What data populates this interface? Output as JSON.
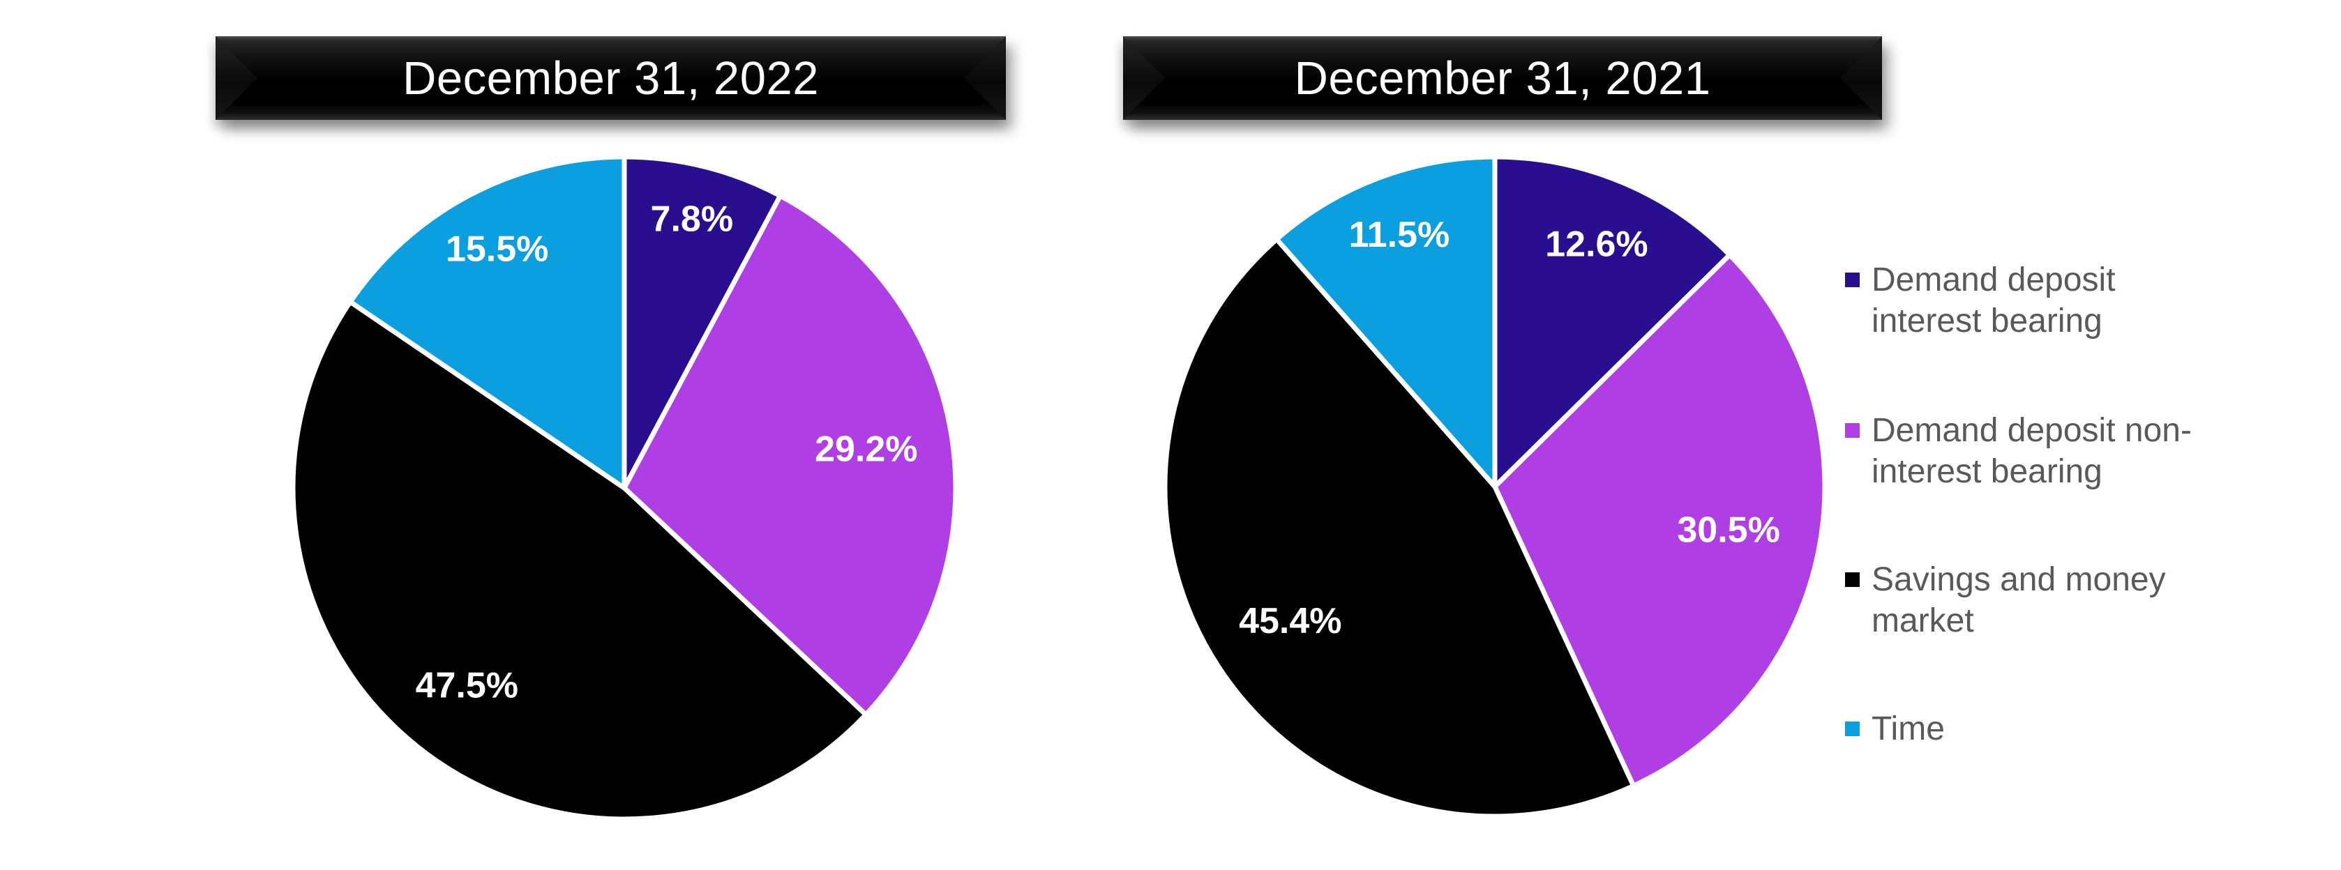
{
  "background_color": "#ffffff",
  "chart_data": [
    {
      "type": "pie",
      "title": "December 31, 2022",
      "categories": [
        "Demand deposit interest bearing",
        "Demand deposit non-interest bearing",
        "Savings and money market",
        "Time"
      ],
      "values": [
        7.8,
        29.2,
        47.5,
        15.5
      ],
      "value_labels": [
        "7.8%",
        "29.2%",
        "47.5%",
        "15.5%"
      ],
      "colors": [
        "#290E8F",
        "#AF3FE4",
        "#000000",
        "#0C9FE0"
      ],
      "slice_border_color": "#ffffff",
      "label_color": "#ffffff",
      "start_angle": 0,
      "direction": "clockwise",
      "label_radius": [
        0.84,
        0.74,
        0.76,
        0.82
      ]
    },
    {
      "type": "pie",
      "title": "December 31, 2021",
      "categories": [
        "Demand deposit interest bearing",
        "Demand deposit non-interest bearing",
        "Savings and money market",
        "Time"
      ],
      "values": [
        12.6,
        30.5,
        45.4,
        11.5
      ],
      "value_labels": [
        "12.6%",
        "30.5%",
        "45.4%",
        "11.5%"
      ],
      "colors": [
        "#290E8F",
        "#AF3FE4",
        "#000000",
        "#0C9FE0"
      ],
      "slice_border_color": "#ffffff",
      "label_color": "#ffffff",
      "start_angle": 0,
      "direction": "clockwise",
      "label_radius": [
        0.8,
        0.72,
        0.74,
        0.82
      ]
    }
  ],
  "legend": {
    "position": "right",
    "text_color": "#595959",
    "items": [
      {
        "label": "Demand deposit interest bearing",
        "color": "#290E8F"
      },
      {
        "label": "Demand deposit non-interest bearing",
        "color": "#AF3FE4"
      },
      {
        "label": "Savings and money market",
        "color": "#000000"
      },
      {
        "label": "Time",
        "color": "#0C9FE0"
      }
    ]
  }
}
